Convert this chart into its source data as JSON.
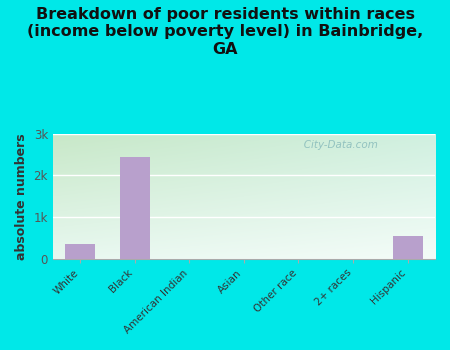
{
  "categories": [
    "White",
    "Black",
    "American Indian",
    "Asian",
    "Other race",
    "2+ races",
    "Hispanic"
  ],
  "values": [
    350,
    2450,
    0,
    0,
    0,
    0,
    550
  ],
  "bar_color": "#b8a0cc",
  "title": "Breakdown of poor residents within races\n(income below poverty level) in Bainbridge,\nGA",
  "ylabel": "absolute numbers",
  "ylim": [
    0,
    3000
  ],
  "yticks": [
    0,
    1000,
    2000,
    3000
  ],
  "ytick_labels": [
    "0",
    "1k",
    "2k",
    "3k"
  ],
  "background_color": "#00e8e8",
  "plot_bg_topleft": "#c8e8c8",
  "plot_bg_topright": "#d8f0e8",
  "plot_bg_bottomleft": "#e8f8e8",
  "plot_bg_bottomright": "#f0faf8",
  "watermark": "   City-Data.com",
  "title_fontsize": 11.5,
  "ylabel_fontsize": 9
}
